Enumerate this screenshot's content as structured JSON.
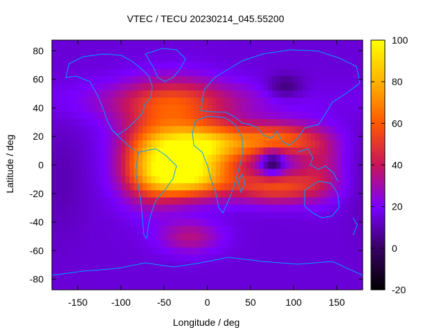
{
  "chart_data": {
    "type": "heatmap",
    "title": "VTEC / TECU 20230214_045.55200",
    "xlabel": "Longitude / deg",
    "ylabel": "Latitude / deg",
    "xlim": [
      -180,
      180
    ],
    "ylim": [
      -87.5,
      87.5
    ],
    "x_ticks": [
      -150,
      -100,
      -50,
      0,
      50,
      100,
      150
    ],
    "y_ticks": [
      -80,
      -60,
      -40,
      -20,
      0,
      20,
      40,
      60,
      80
    ],
    "colorbar": {
      "range": [
        -20,
        100
      ],
      "ticks": [
        -20,
        0,
        20,
        40,
        60,
        80,
        100
      ],
      "palette": [
        "#000000",
        "#3a0066",
        "#7a00ff",
        "#c8145a",
        "#ff5a00",
        "#ffb000",
        "#ffff00"
      ]
    },
    "background_level": 15,
    "features": [
      {
        "name": "equatorial-anomaly-crest-north",
        "lon": -10,
        "lat": 14,
        "sigma_lon": 40,
        "sigma_lat": 10,
        "value": 75
      },
      {
        "name": "equatorial-anomaly-crest-south",
        "lon": -20,
        "lat": -8,
        "sigma_lon": 35,
        "sigma_lat": 10,
        "value": 75
      },
      {
        "name": "south-america-high",
        "lon": -65,
        "lat": 0,
        "sigma_lon": 25,
        "sigma_lat": 18,
        "value": 45
      },
      {
        "name": "north-atlantic-high",
        "lon": -40,
        "lat": 40,
        "sigma_lon": 40,
        "sigma_lat": 15,
        "value": 30
      },
      {
        "name": "mid-latitude-band",
        "lon": -30,
        "lat": 45,
        "sigma_lon": 90,
        "sigma_lat": 10,
        "value": 15
      },
      {
        "name": "indian-ocean-band-north",
        "lon": 80,
        "lat": 18,
        "sigma_lon": 35,
        "sigma_lat": 8,
        "value": 45
      },
      {
        "name": "indian-ocean-band-south",
        "lon": 80,
        "lat": -15,
        "sigma_lon": 35,
        "sigma_lat": 8,
        "value": 40
      },
      {
        "name": "indian-ocean-low",
        "lon": 75,
        "lat": 2,
        "sigma_lon": 10,
        "sigma_lat": 7,
        "value": -30
      },
      {
        "name": "southeast-asia-band",
        "lon": 130,
        "lat": 0,
        "sigma_lon": 20,
        "sigma_lat": 15,
        "value": 20
      },
      {
        "name": "south-atlantic-high",
        "lon": -20,
        "lat": -50,
        "sigma_lon": 25,
        "sigma_lat": 8,
        "value": 20
      },
      {
        "name": "siberian-low",
        "lon": 90,
        "lat": 55,
        "sigma_lon": 15,
        "sigma_lat": 6,
        "value": -15
      },
      {
        "name": "pacific-low",
        "lon": -170,
        "lat": -10,
        "sigma_lon": 20,
        "sigma_lat": 30,
        "value": -5
      }
    ],
    "overlay": "coastlines",
    "overlay_color": "#00a0ff"
  }
}
